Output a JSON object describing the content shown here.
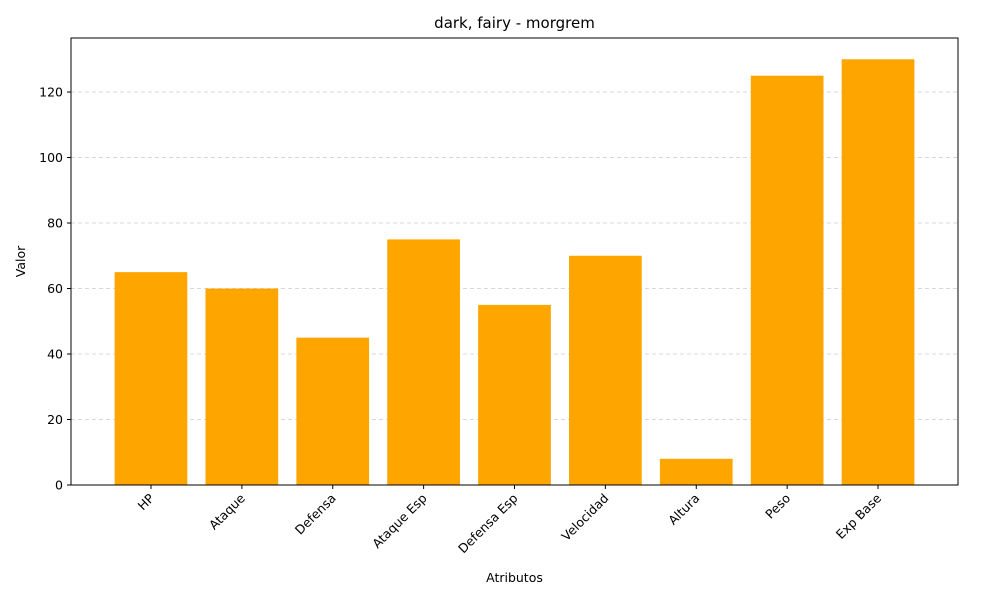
{
  "chart_data": {
    "type": "bar",
    "title": "dark, fairy - morgrem",
    "xlabel": "Atributos",
    "ylabel": "Valor",
    "categories": [
      "HP",
      "Ataque",
      "Defensa",
      "Ataque Esp",
      "Defensa Esp",
      "Velocidad",
      "Altura",
      "Peso",
      "Exp Base"
    ],
    "values": [
      65,
      60,
      45,
      75,
      55,
      70,
      8,
      125,
      130
    ],
    "ylim": [
      0,
      136.5
    ],
    "yticks": [
      0,
      20,
      40,
      60,
      80,
      100,
      120
    ],
    "bar_color": "#FFA500",
    "grid": "y-dashed",
    "grid_color": "#cccccc",
    "legend": "none"
  }
}
